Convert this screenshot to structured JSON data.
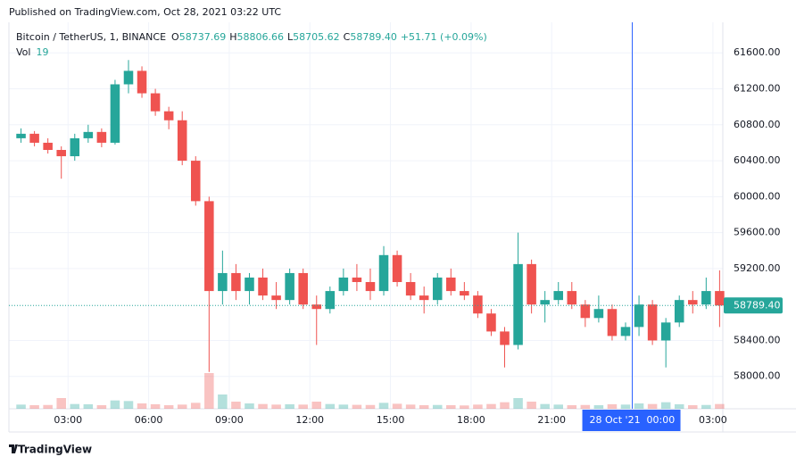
{
  "published": "Published on TradingView.com, Oct 28, 2021 03:22 UTC",
  "header": {
    "symbol": "Bitcoin / TetherUS, 1, BINANCE",
    "ohlc": [
      {
        "label": "O",
        "value": "58737.69"
      },
      {
        "label": "H",
        "value": "58806.66"
      },
      {
        "label": "L",
        "value": "58705.62"
      },
      {
        "label": "C",
        "value": "58789.40"
      }
    ],
    "change": "+51.71 (+0.09%)",
    "volume_label": "Vol",
    "volume_value": "19"
  },
  "logo": "TradingView",
  "chart_data": {
    "type": "candlestick",
    "x": [
      1.0,
      1.5,
      2.0,
      2.5,
      3.0,
      3.5,
      4.0,
      4.5,
      5.0,
      5.5,
      6.0,
      6.5,
      7.0,
      7.5,
      8.0,
      8.5,
      9.0,
      9.5,
      10.0,
      10.5,
      11.0,
      11.5,
      12.0,
      12.5,
      13.0,
      13.5,
      14.0,
      14.5,
      15.0,
      15.5,
      16.0,
      16.5,
      17.0,
      17.5,
      18.0,
      18.5,
      19.0,
      19.5,
      20.0,
      20.5,
      21.0,
      21.5,
      22.0,
      22.5,
      23.0,
      23.5,
      24.0,
      24.5,
      25.0,
      25.5,
      26.0,
      26.5,
      27.0
    ],
    "open": [
      60650,
      60700,
      60600,
      60520,
      60450,
      60650,
      60720,
      60600,
      61250,
      61400,
      61150,
      60950,
      60850,
      60400,
      59950,
      58950,
      59150,
      58950,
      59100,
      58900,
      58850,
      59150,
      58800,
      58750,
      58950,
      59100,
      59050,
      58950,
      59350,
      59050,
      58900,
      58850,
      59100,
      58950,
      58900,
      58700,
      58500,
      58350,
      59250,
      58800,
      58850,
      58950,
      58800,
      58650,
      58750,
      58450,
      58550,
      58800,
      58400,
      58600,
      58850,
      58800,
      58950
    ],
    "high": [
      60760,
      60730,
      60650,
      60560,
      60700,
      60800,
      60760,
      61300,
      61520,
      61450,
      61200,
      61000,
      60950,
      60450,
      60000,
      59400,
      59250,
      59150,
      59200,
      59050,
      59200,
      59200,
      58900,
      59000,
      59200,
      59250,
      59200,
      59450,
      59400,
      59150,
      59000,
      59150,
      59200,
      59050,
      58950,
      58750,
      58550,
      59600,
      59300,
      58950,
      59050,
      59050,
      58850,
      58900,
      58800,
      58600,
      58900,
      58850,
      58650,
      58900,
      58950,
      59100,
      59180
    ],
    "low": [
      60600,
      60560,
      60480,
      60200,
      60400,
      60600,
      60550,
      60580,
      61150,
      61100,
      60900,
      60750,
      60350,
      59900,
      58050,
      58800,
      58850,
      58800,
      58850,
      58750,
      58800,
      58750,
      58350,
      58700,
      58900,
      58950,
      58850,
      58900,
      59000,
      58850,
      58700,
      58800,
      58900,
      58850,
      58650,
      58450,
      58100,
      58300,
      58700,
      58600,
      58800,
      58750,
      58550,
      58600,
      58400,
      58400,
      58450,
      58350,
      58100,
      58550,
      58700,
      58750,
      58550
    ],
    "close": [
      60700,
      60600,
      60520,
      60450,
      60650,
      60720,
      60600,
      61250,
      61400,
      61150,
      60950,
      60850,
      60400,
      59950,
      58950,
      59150,
      58950,
      59100,
      58900,
      58850,
      59150,
      58800,
      58750,
      58950,
      59100,
      59050,
      58950,
      59350,
      59050,
      58900,
      58850,
      59100,
      58950,
      58900,
      58700,
      58500,
      58350,
      59250,
      58800,
      58850,
      58950,
      58800,
      58650,
      58750,
      58450,
      58550,
      58800,
      58400,
      58600,
      58850,
      58800,
      58950,
      58789.4
    ],
    "volume": [
      350,
      300,
      320,
      900,
      400,
      380,
      300,
      700,
      650,
      450,
      380,
      300,
      350,
      500,
      3000,
      1200,
      600,
      450,
      400,
      350,
      380,
      350,
      600,
      400,
      350,
      330,
      320,
      500,
      420,
      350,
      300,
      320,
      300,
      280,
      350,
      400,
      550,
      900,
      600,
      400,
      350,
      300,
      320,
      300,
      380,
      350,
      450,
      400,
      550,
      380,
      300,
      320,
      400
    ],
    "up_color": "#26a69a",
    "down_color": "#ef5350",
    "xlim": [
      0.8,
      27.37
    ],
    "xticks": [
      {
        "value": 3,
        "label": "03:00"
      },
      {
        "value": 6,
        "label": "06:00"
      },
      {
        "value": 9,
        "label": "09:00"
      },
      {
        "value": 12,
        "label": "12:00"
      },
      {
        "value": 15,
        "label": "15:00"
      },
      {
        "value": 18,
        "label": "18:00"
      },
      {
        "value": 21,
        "label": "21:00"
      },
      {
        "value": 27,
        "label": "03:00"
      }
    ],
    "ylim": [
      57640,
      61940
    ],
    "yticks": [
      {
        "value": 58000,
        "label": "58000.00"
      },
      {
        "value": 58400,
        "label": "58400.00"
      },
      {
        "value": 59200,
        "label": "59200.00"
      },
      {
        "value": 59600,
        "label": "59600.00"
      },
      {
        "value": 60000,
        "label": "60000.00"
      },
      {
        "value": 60400,
        "label": "60400.00"
      },
      {
        "value": 60800,
        "label": "60800.00"
      },
      {
        "value": 61200,
        "label": "61200.00"
      },
      {
        "value": 61600,
        "label": "61600.00"
      }
    ],
    "grid": true,
    "last_price": {
      "value": 58789.4,
      "label": "58789.40"
    },
    "crosshair": {
      "x": 24,
      "date": "28 Oct '21",
      "time": "00:00",
      "color": "#2962ff"
    }
  }
}
